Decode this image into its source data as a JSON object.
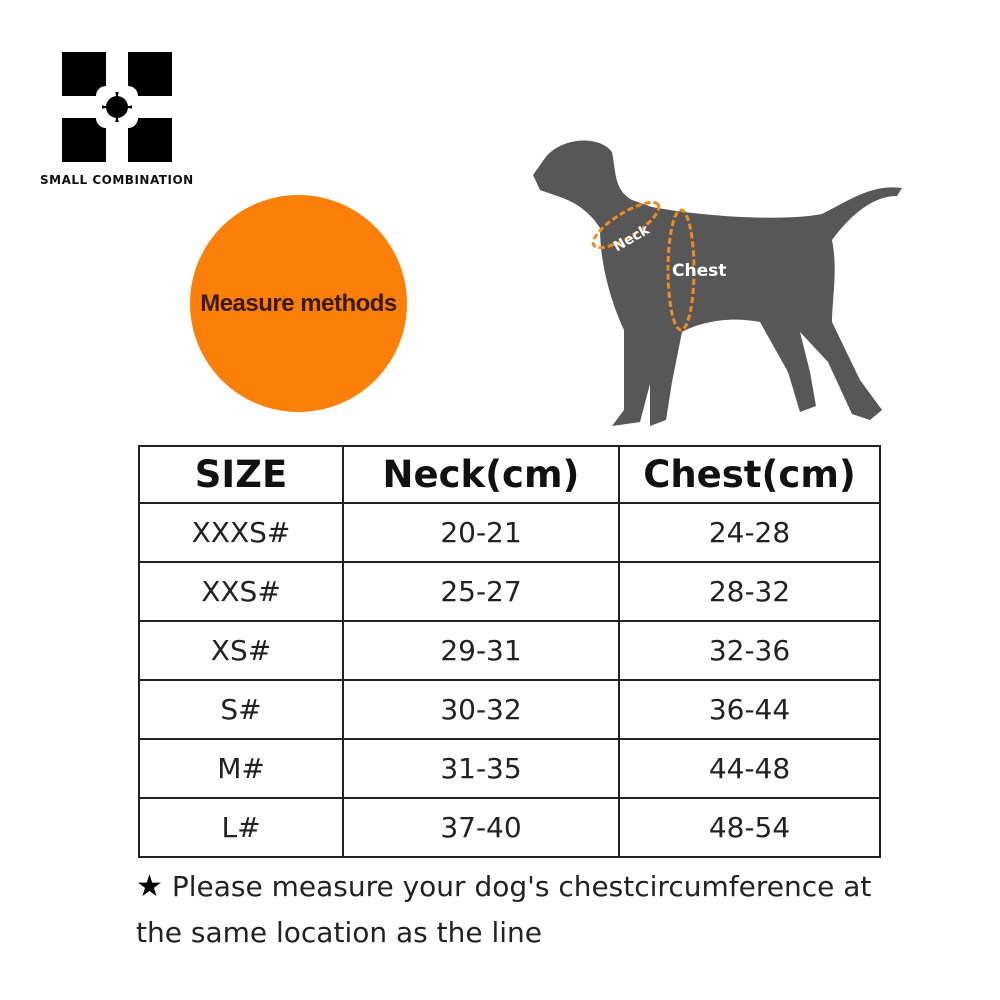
{
  "brand": {
    "name": "SMALL COMBINATION"
  },
  "badge": {
    "label": "Measure methods",
    "color": "#fb7f08"
  },
  "diagram": {
    "neck_label": "Neck",
    "chest_label": "Chest",
    "silhouette_color": "#575757",
    "line_color": "#f08a1e"
  },
  "table": {
    "headers": [
      "SIZE",
      "Neck(cm)",
      "Chest(cm)"
    ],
    "rows": [
      [
        "XXXS#",
        "20-21",
        "24-28"
      ],
      [
        "XXS#",
        "25-27",
        "28-32"
      ],
      [
        "XS#",
        "29-31",
        "32-36"
      ],
      [
        "S#",
        "30-32",
        "36-44"
      ],
      [
        "M#",
        "31-35",
        "44-48"
      ],
      [
        "L#",
        "37-40",
        "48-54"
      ]
    ]
  },
  "note": {
    "icon": "star-icon",
    "text": "Please measure your dog's chestcircumference at the same location as the line"
  }
}
